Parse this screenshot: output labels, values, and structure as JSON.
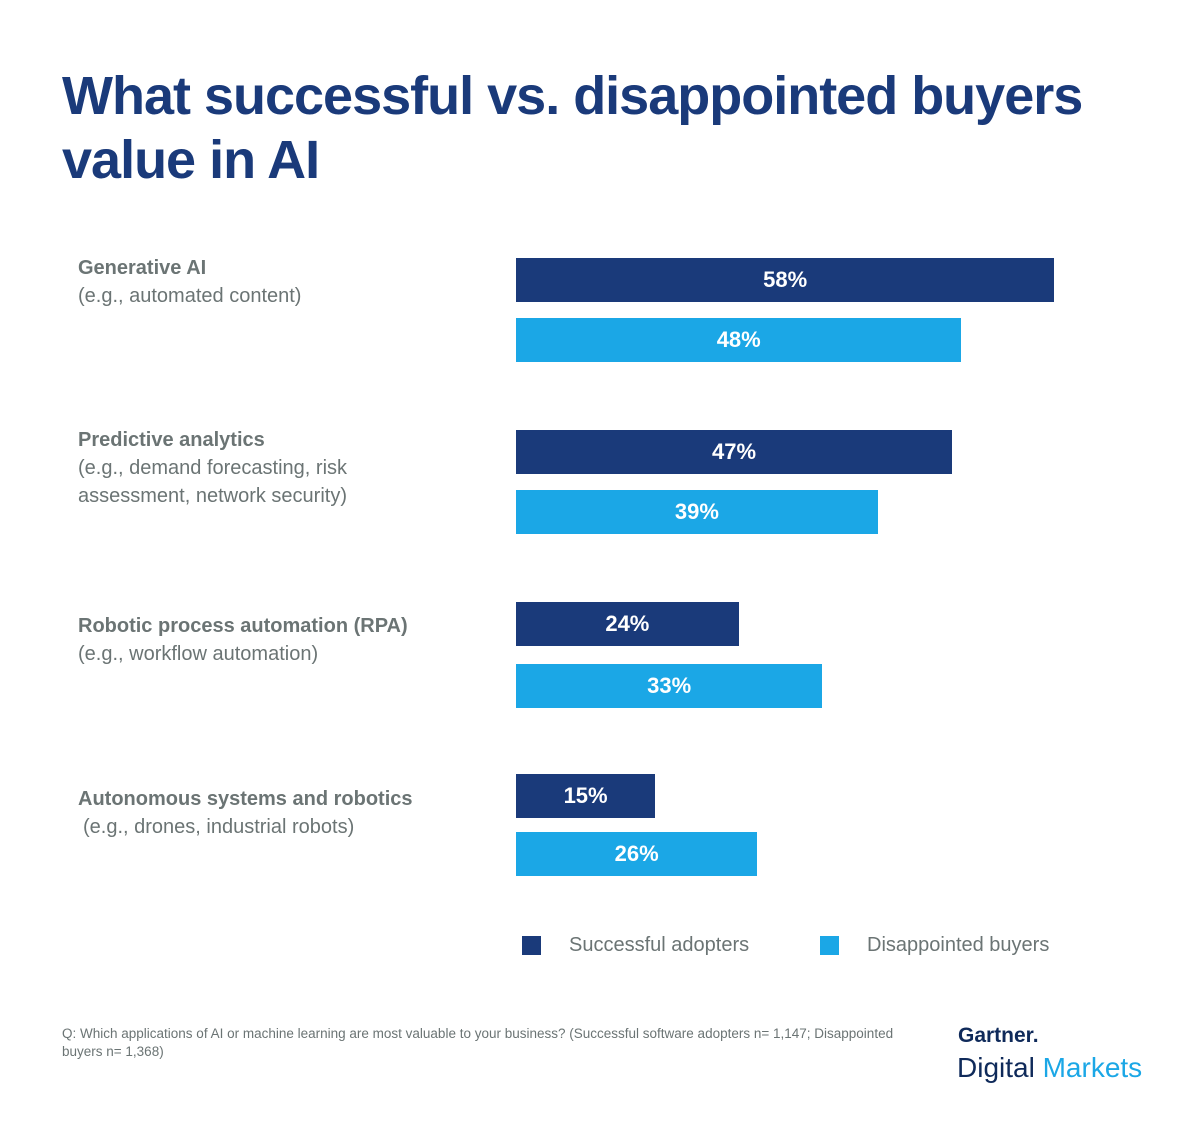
{
  "chart_data": {
    "type": "bar",
    "orientation": "horizontal",
    "title": "What successful vs. disappointed buyers value in AI",
    "categories": [
      {
        "name": "Generative AI",
        "detail": "(e.g., automated content)"
      },
      {
        "name": "Predictive analytics",
        "detail": "(e.g., demand forecasting, risk assessment, network security)"
      },
      {
        "name": "Robotic process automation (RPA)",
        "detail": "(e.g., workflow automation)"
      },
      {
        "name": "Autonomous systems and robotics",
        "detail": "(e.g., drones, industrial robots)"
      }
    ],
    "series": [
      {
        "name": "Successful adopters",
        "color": "#1a3a7a",
        "values": [
          58,
          47,
          24,
          15
        ]
      },
      {
        "name": "Disappointed buyers",
        "color": "#1ba7e6",
        "values": [
          48,
          39,
          33,
          26
        ]
      }
    ],
    "unit": "%",
    "legend": "bottom-right",
    "grid": false
  },
  "footnote": "Q: Which applications of AI or machine learning are most valuable to your business?  (Successful software adopters n= 1,147; Disappointed buyers n= 1,368)",
  "logo": {
    "line1": "Gartner.",
    "line2a": "Digital",
    "line2b": "Markets"
  }
}
